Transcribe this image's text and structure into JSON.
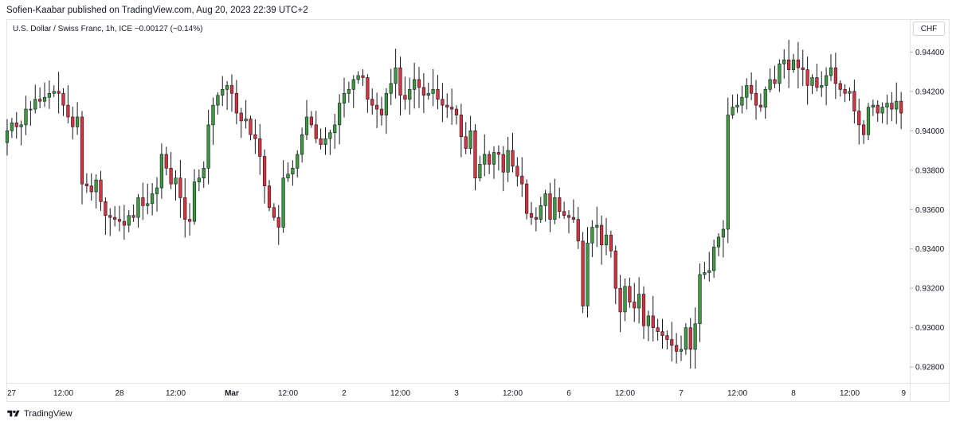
{
  "header": {
    "published_line": "Sofien-Kaabar published on TradingView.com, Aug 20, 2023 22:39 UTC+2"
  },
  "legend": {
    "symbol": "U.S. Dollar / Swiss Franc, 1h, ICE",
    "change": "−0.00127 (−0.14%)"
  },
  "currency_label": "CHF",
  "footer": {
    "brand": "TradingView",
    "logo_icon": "tradingview-logo-icon"
  },
  "colors": {
    "up": "#3f9a3f",
    "down": "#d9323f",
    "wick": "#131722",
    "frame": "#e0e3eb"
  },
  "chart_data": {
    "type": "candlestick",
    "title": "U.S. Dollar / Swiss Franc, 1h, ICE",
    "ylim": [
      0.9272,
      0.9447
    ],
    "y_ticks": [
      0.944,
      0.942,
      0.94,
      0.938,
      0.936,
      0.934,
      0.932,
      0.93,
      0.928
    ],
    "y_tick_labels": [
      "0.94400",
      "0.94200",
      "0.94000",
      "0.93800",
      "0.93600",
      "0.93400",
      "0.93200",
      "0.93000",
      "0.92800"
    ],
    "x_tick_labels": [
      "27",
      "12:00",
      "28",
      "12:00",
      "Mar",
      "12:00",
      "2",
      "12:00",
      "3",
      "12:00",
      "6",
      "12:00",
      "7",
      "12:00",
      "8",
      "12:00",
      "9"
    ],
    "x_tick_positions": [
      0,
      12,
      24,
      36,
      48,
      60,
      72,
      84,
      96,
      108,
      120,
      132,
      144,
      156,
      168,
      180,
      192
    ],
    "bold_ticks": [
      "Mar"
    ],
    "grid": false,
    "legend_position": "top-left",
    "close_values": [
      0.94,
      0.9404,
      0.9402,
      0.9403,
      0.9411,
      0.9411,
      0.9416,
      0.9415,
      0.9417,
      0.9419,
      0.942,
      0.9419,
      0.9413,
      0.9407,
      0.9402,
      0.9407,
      0.9373,
      0.9372,
      0.9369,
      0.9375,
      0.9364,
      0.9357,
      0.9356,
      0.9355,
      0.9354,
      0.9352,
      0.9357,
      0.9356,
      0.9366,
      0.9362,
      0.9363,
      0.9368,
      0.9371,
      0.9388,
      0.9381,
      0.9373,
      0.9376,
      0.9366,
      0.9355,
      0.9354,
      0.9374,
      0.9376,
      0.9381,
      0.9403,
      0.9413,
      0.9418,
      0.9421,
      0.9423,
      0.9419,
      0.9409,
      0.9405,
      0.9406,
      0.9398,
      0.9396,
      0.9387,
      0.9372,
      0.9361,
      0.9356,
      0.9351,
      0.9376,
      0.9378,
      0.9381,
      0.9388,
      0.9398,
      0.9407,
      0.9403,
      0.9396,
      0.9393,
      0.9396,
      0.9399,
      0.9403,
      0.9414,
      0.9419,
      0.9421,
      0.9426,
      0.9428,
      0.9427,
      0.9416,
      0.9413,
      0.9411,
      0.9408,
      0.9419,
      0.9424,
      0.9432,
      0.9418,
      0.9416,
      0.9421,
      0.9426,
      0.9422,
      0.9418,
      0.9419,
      0.9421,
      0.9416,
      0.9413,
      0.9412,
      0.9411,
      0.9408,
      0.9397,
      0.9391,
      0.94,
      0.9376,
      0.9383,
      0.9388,
      0.9383,
      0.9389,
      0.9388,
      0.9379,
      0.939,
      0.9382,
      0.9377,
      0.9373,
      0.9358,
      0.9356,
      0.9355,
      0.9362,
      0.9368,
      0.9355,
      0.9366,
      0.9359,
      0.9357,
      0.9356,
      0.9355,
      0.9344,
      0.9311,
      0.9343,
      0.9351,
      0.9352,
      0.9342,
      0.9347,
      0.9339,
      0.932,
      0.9308,
      0.9321,
      0.9313,
      0.931,
      0.9317,
      0.9301,
      0.9306,
      0.93,
      0.9298,
      0.9296,
      0.9294,
      0.9291,
      0.9288,
      0.9289,
      0.93,
      0.9289,
      0.9302,
      0.9327,
      0.9328,
      0.9329,
      0.9341,
      0.9346,
      0.935,
      0.9408,
      0.9412,
      0.9413,
      0.9417,
      0.9423,
      0.9419,
      0.9413,
      0.9412,
      0.9421,
      0.9426,
      0.9424,
      0.9434,
      0.9436,
      0.9431,
      0.9436,
      0.9432,
      0.9431,
      0.9423,
      0.9427,
      0.9422,
      0.9423,
      0.9428,
      0.9432,
      0.9424,
      0.9421,
      0.9419,
      0.942,
      0.941,
      0.9403,
      0.9398,
      0.9412,
      0.9413,
      0.9409,
      0.9412,
      0.9414,
      0.9411,
      0.9415,
      0.9409
    ],
    "last_change": "−0.00127 (−0.14%)"
  }
}
